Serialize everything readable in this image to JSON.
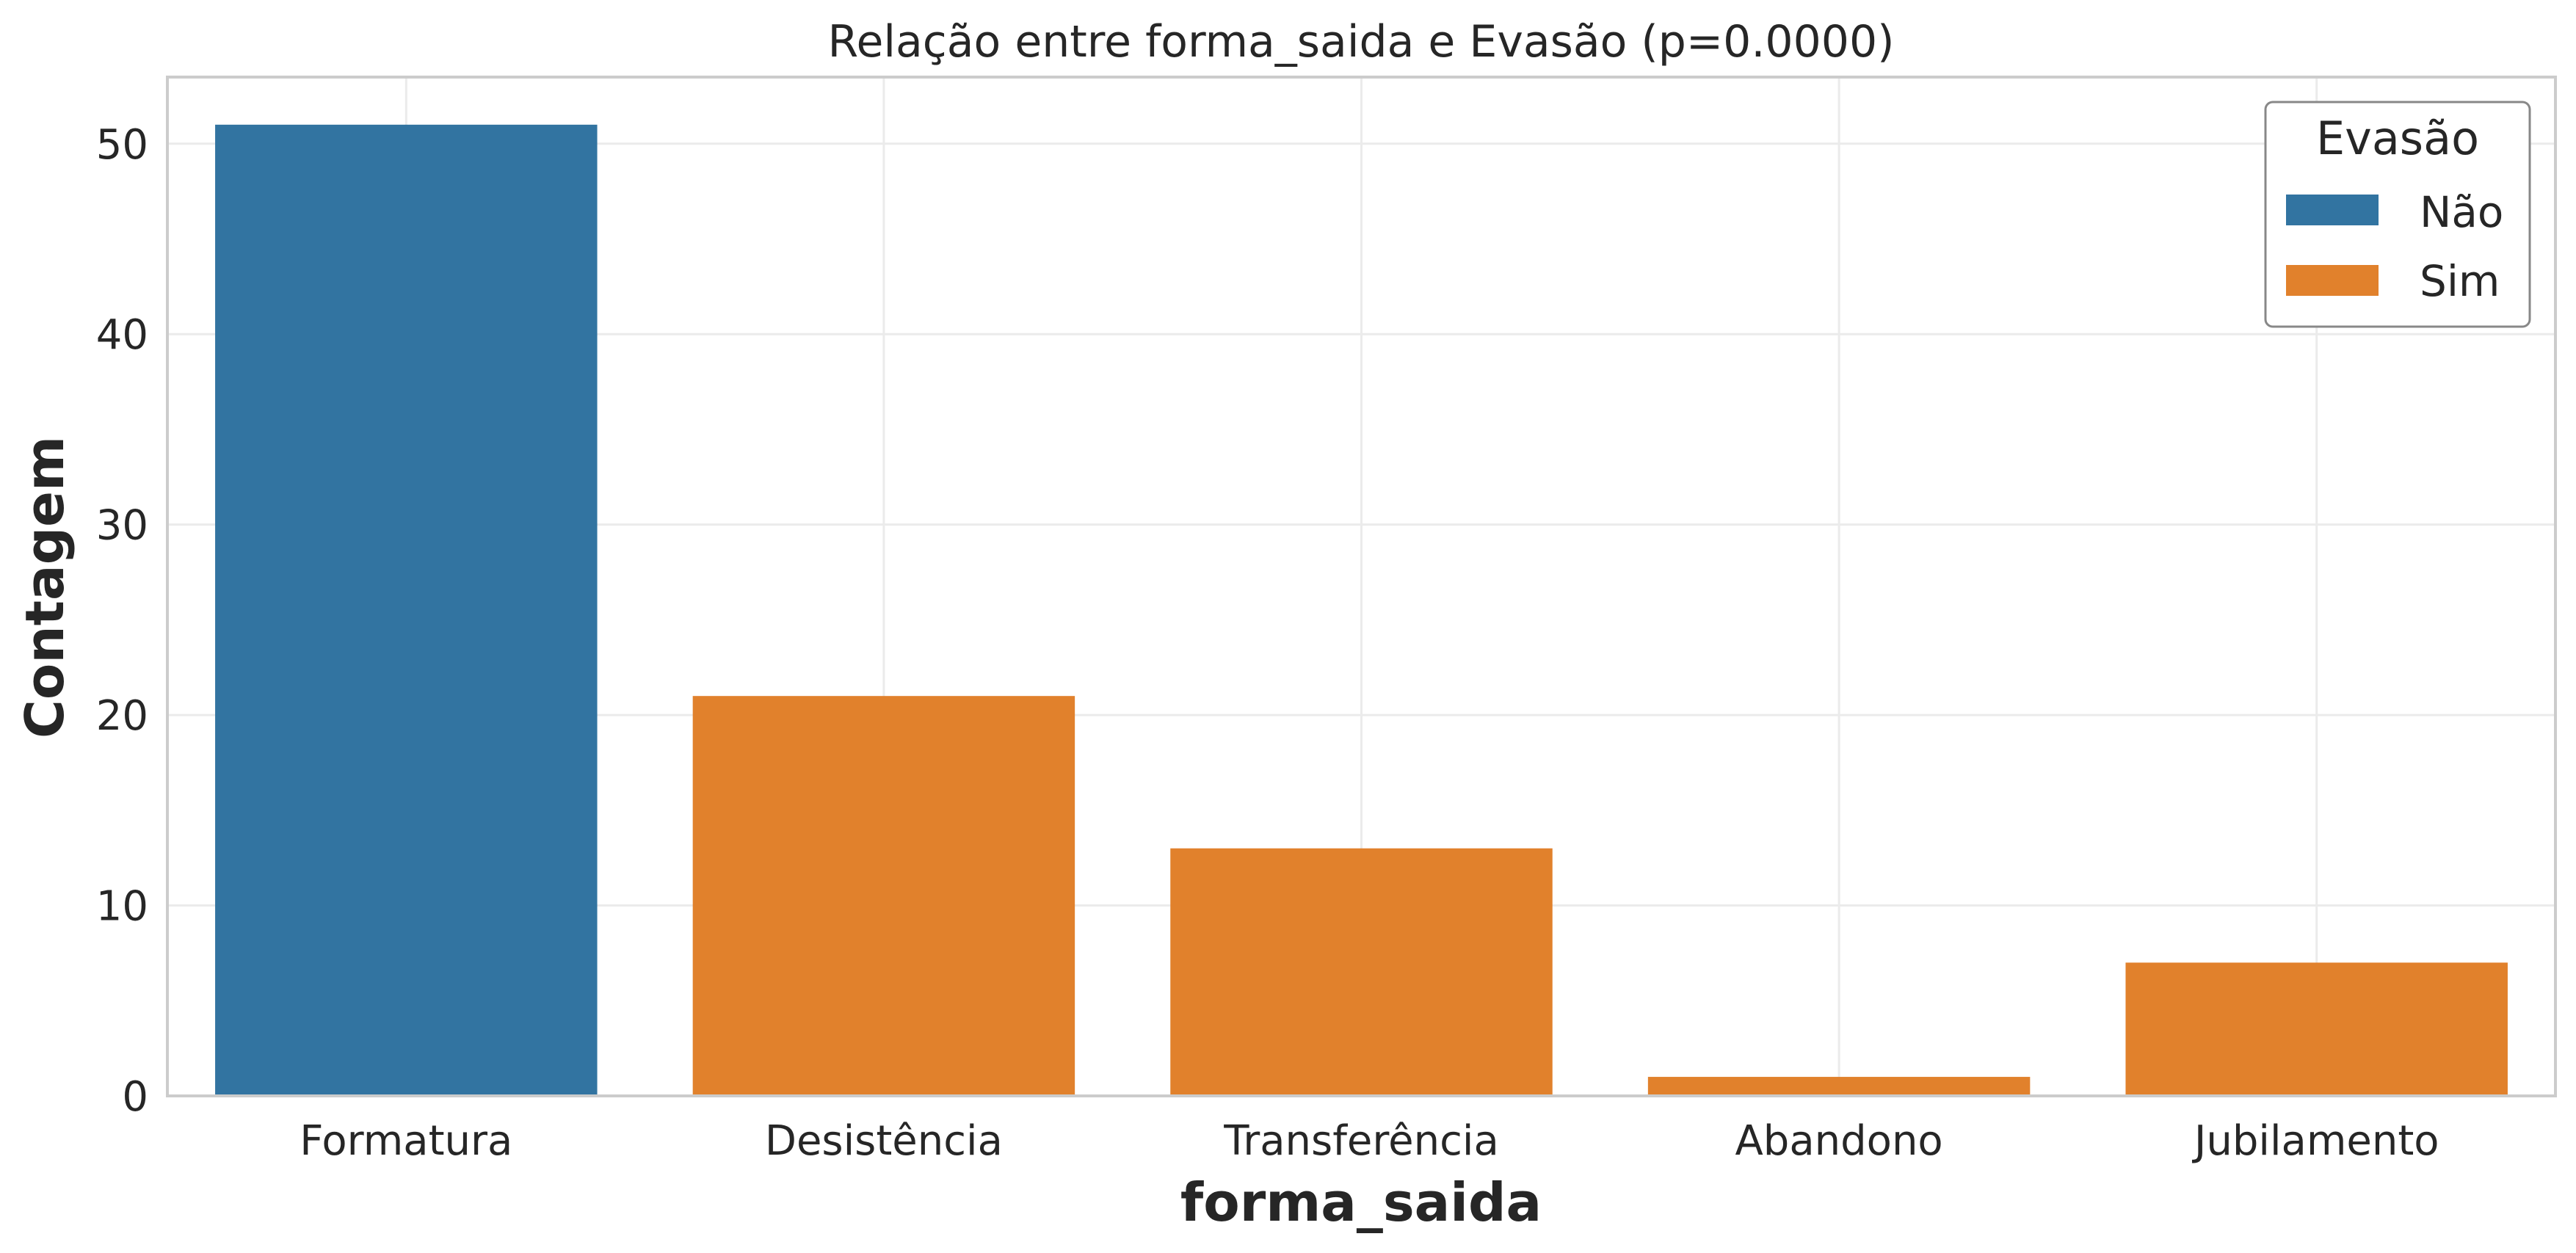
{
  "chart_data": {
    "type": "bar",
    "title": "Relação entre forma_saida e Evasão (p=0.0000)",
    "xlabel": "forma_saida",
    "ylabel": "Contagem",
    "categories": [
      "Formatura",
      "Desistência",
      "Transferência",
      "Abandono",
      "Jubilamento"
    ],
    "values": [
      51,
      21,
      13,
      1,
      7
    ],
    "hue": [
      "Não",
      "Sim",
      "Sim",
      "Sim",
      "Sim"
    ],
    "ylim": [
      0,
      53.5
    ],
    "yticks": [
      0,
      10,
      20,
      30,
      40,
      50
    ],
    "grid": true,
    "legend": {
      "title": "Evasão",
      "placement": "top-right",
      "entries": [
        {
          "label": "Não",
          "color": "#3274a1"
        },
        {
          "label": "Sim",
          "color": "#e1812c"
        }
      ]
    }
  }
}
